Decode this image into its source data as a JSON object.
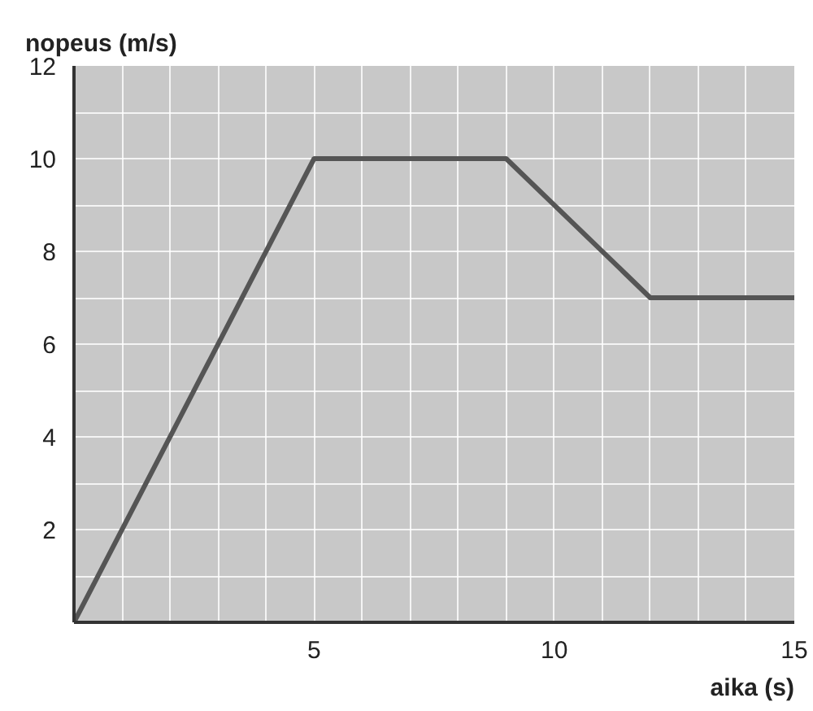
{
  "chart_data": {
    "type": "line",
    "xlabel": "aika (s)",
    "ylabel": "nopeus (m/s)",
    "x": [
      0,
      5,
      9,
      12,
      15
    ],
    "series": [
      {
        "color": "#555555",
        "values": [
          0,
          10,
          10,
          7,
          7
        ]
      }
    ],
    "xlim": [
      0,
      15
    ],
    "ylim": [
      0,
      12
    ],
    "xticks": [
      {
        "value": 0,
        "label": null
      },
      {
        "value": 1,
        "label": null
      },
      {
        "value": 2,
        "label": null
      },
      {
        "value": 3,
        "label": null
      },
      {
        "value": 4,
        "label": null
      },
      5,
      {
        "value": 6,
        "label": null
      },
      {
        "value": 7,
        "label": null
      },
      {
        "value": 8,
        "label": null
      },
      {
        "value": 9,
        "label": null
      },
      10,
      {
        "value": 11,
        "label": null
      },
      {
        "value": 12,
        "label": null
      },
      {
        "value": 13,
        "label": null
      },
      {
        "value": 14,
        "label": null
      },
      15
    ],
    "yticks": [
      {
        "value": 0,
        "label": null
      },
      {
        "value": 1,
        "label": null
      },
      2,
      {
        "value": 3,
        "label": null
      },
      4,
      {
        "value": 5,
        "label": null
      },
      6,
      {
        "value": 7,
        "label": null
      },
      8,
      {
        "value": 9,
        "label": null
      },
      10,
      {
        "value": 11,
        "label": null
      },
      12
    ],
    "grid": true,
    "line_style": "solid",
    "marker": "none"
  }
}
